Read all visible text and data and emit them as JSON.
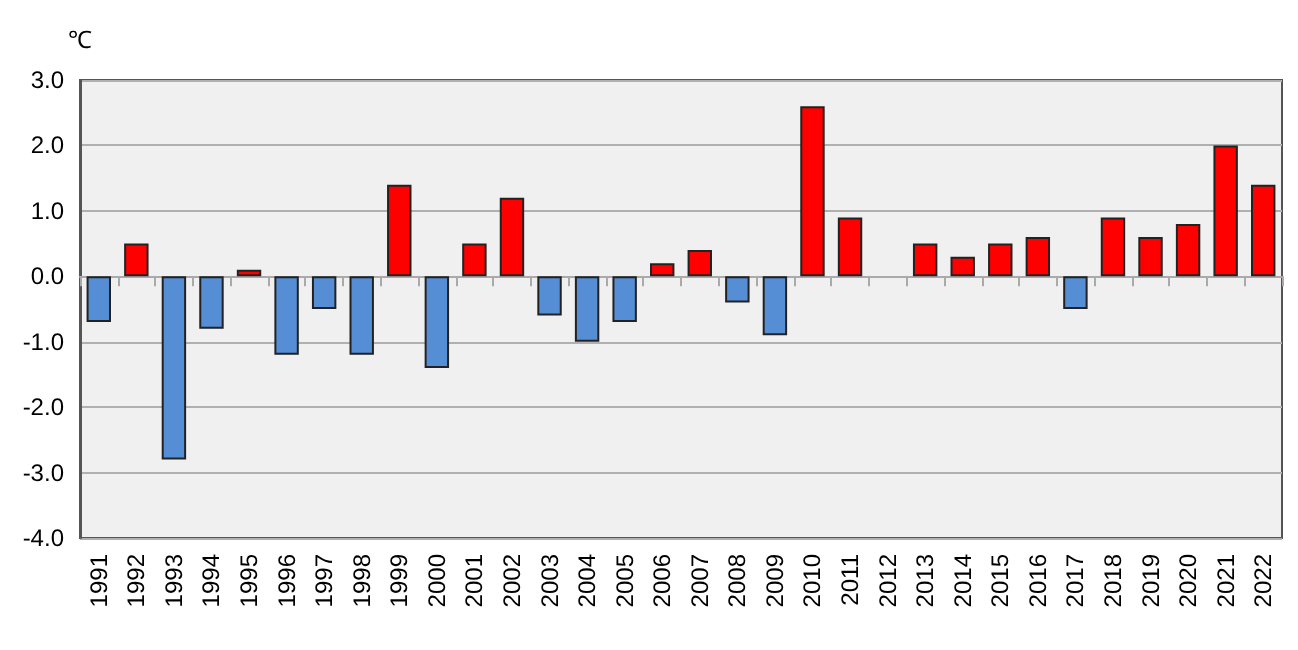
{
  "chart_data": {
    "type": "bar",
    "ylabel": "℃",
    "categories": [
      "1991",
      "1992",
      "1993",
      "1994",
      "1995",
      "1996",
      "1997",
      "1998",
      "1999",
      "2000",
      "2001",
      "2002",
      "2003",
      "2004",
      "2005",
      "2006",
      "2007",
      "2008",
      "2009",
      "2010",
      "2011",
      "2012",
      "2013",
      "2014",
      "2015",
      "2016",
      "2017",
      "2018",
      "2019",
      "2020",
      "2021",
      "2022"
    ],
    "values": [
      -0.7,
      0.5,
      -2.8,
      -0.8,
      0.1,
      -1.2,
      -0.5,
      -1.2,
      1.4,
      -1.4,
      0.5,
      1.2,
      -0.6,
      -1.0,
      -0.7,
      0.2,
      0.4,
      -0.4,
      -0.9,
      2.6,
      0.9,
      null,
      0.5,
      0.3,
      0.5,
      0.6,
      -0.5,
      0.9,
      0.6,
      0.8,
      2.0,
      1.4
    ],
    "colors": [
      "#558ed5",
      "#ff0000",
      "#558ed5",
      "#558ed5",
      "#ff0000",
      "#558ed5",
      "#558ed5",
      "#558ed5",
      "#ff0000",
      "#558ed5",
      "#ff0000",
      "#ff0000",
      "#558ed5",
      "#558ed5",
      "#558ed5",
      "#ff0000",
      "#ff0000",
      "#558ed5",
      "#558ed5",
      "#ff0000",
      "#ff0000",
      "#ff0000",
      "#ff0000",
      "#ff0000",
      "#ff0000",
      "#ff0000",
      "#558ed5",
      "#ff0000",
      "#ff0000",
      "#ff0000",
      "#ff0000",
      "#ff0000"
    ],
    "ylim": [
      -4.0,
      3.0
    ],
    "yticks": [
      {
        "value": -4,
        "label": "-4.0"
      },
      {
        "value": -3,
        "label": "-3.0"
      },
      {
        "value": -2,
        "label": "-2.0"
      },
      {
        "value": -1,
        "label": "-1.0"
      },
      {
        "value": 0,
        "label": "0.0"
      },
      {
        "value": 1,
        "label": "1.0"
      },
      {
        "value": 2,
        "label": "2.0"
      },
      {
        "value": 3,
        "label": "3.0"
      }
    ],
    "grid": "y"
  }
}
